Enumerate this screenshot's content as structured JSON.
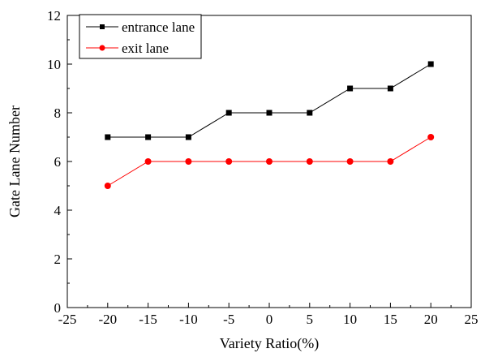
{
  "chart_data": {
    "type": "line",
    "xlabel": "Variety Ratio(%)",
    "ylabel": "Gate Lane Number",
    "xlim": [
      -25,
      25
    ],
    "ylim": [
      0,
      12
    ],
    "xticks": [
      -25,
      -20,
      -15,
      -10,
      -5,
      0,
      5,
      10,
      15,
      20,
      25
    ],
    "yticks": [
      0,
      2,
      4,
      6,
      8,
      10,
      12
    ],
    "x": [
      -20,
      -15,
      -10,
      -5,
      0,
      5,
      10,
      15,
      20
    ],
    "series": [
      {
        "name": "entrance lane",
        "values": [
          7,
          7,
          7,
          8,
          8,
          8,
          9,
          9,
          10
        ],
        "color": "#000000",
        "marker": "square"
      },
      {
        "name": "exit lane",
        "values": [
          5,
          6,
          6,
          6,
          6,
          6,
          6,
          6,
          7
        ],
        "color": "#ff0000",
        "marker": "circle"
      }
    ],
    "legend": "top-left",
    "grid": false
  }
}
